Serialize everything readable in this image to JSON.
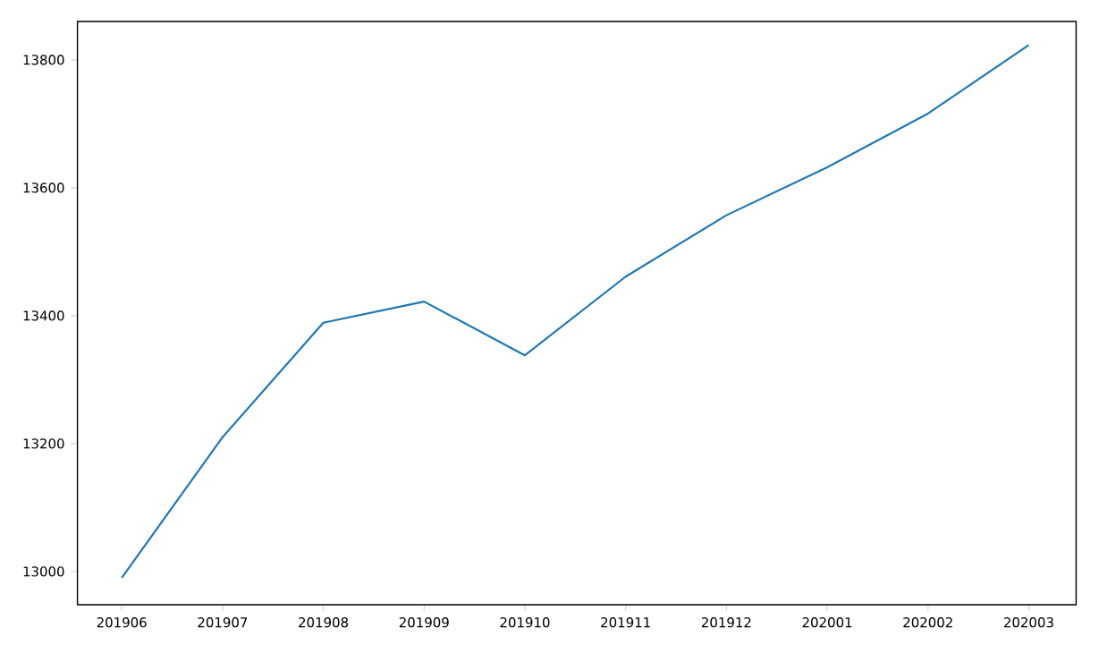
{
  "chart_data": {
    "type": "line",
    "categories": [
      "201906",
      "201907",
      "201908",
      "201909",
      "201910",
      "201911",
      "201912",
      "202001",
      "202002",
      "202003"
    ],
    "series": [
      {
        "color": "#1f77b4",
        "values": [
          12990,
          13210,
          13389,
          13422,
          13338,
          13461,
          13557,
          13632,
          13716,
          13823
        ]
      }
    ],
    "ylim": [
      12948,
      13860
    ],
    "yticks": [
      13000,
      13200,
      13400,
      13600,
      13800
    ],
    "marker": "none",
    "line_style": "solid"
  }
}
